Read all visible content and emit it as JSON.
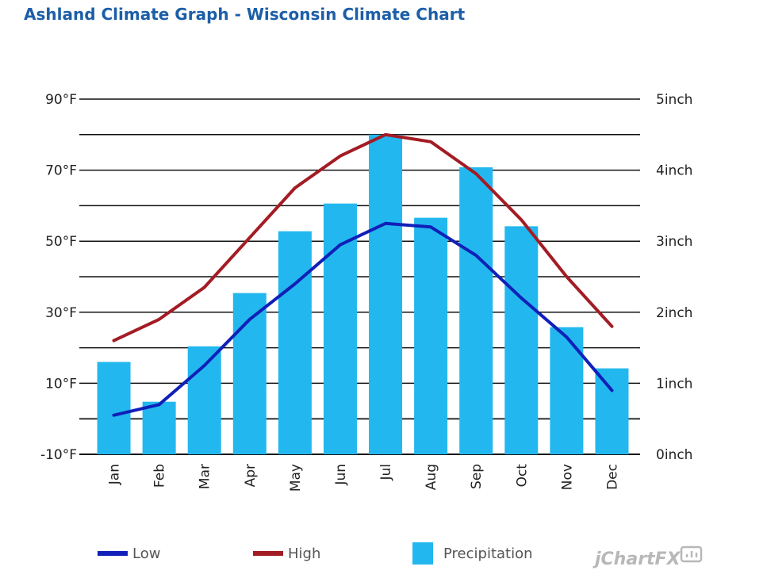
{
  "title": "Ashland Climate Graph - Wisconsin Climate Chart",
  "brand": "jChartFX",
  "chart_data": {
    "type": "bar",
    "title": "Ashland Climate Graph - Wisconsin Climate Chart",
    "categories": [
      "Jan",
      "Feb",
      "Mar",
      "Apr",
      "May",
      "Jun",
      "Jul",
      "Aug",
      "Sep",
      "Oct",
      "Nov",
      "Dec"
    ],
    "y_left": {
      "ticks": [
        "90°F",
        "70°F",
        "50°F",
        "30°F",
        "10°F",
        "-10°F"
      ],
      "ylim": [
        -10,
        90
      ],
      "unit": "°F"
    },
    "y_right": {
      "ticks": [
        "5inch",
        "4inch",
        "3inch",
        "2inch",
        "1inch",
        "0inch"
      ],
      "ylim": [
        0,
        5
      ],
      "unit": "inch"
    },
    "series": [
      {
        "name": "Low",
        "type": "line",
        "axis": "left",
        "color": "#1020b8",
        "values": [
          1,
          4,
          15,
          28,
          38,
          49,
          55,
          54,
          46,
          34,
          23,
          8
        ]
      },
      {
        "name": "High",
        "type": "line",
        "axis": "left",
        "color": "#a31c24",
        "values": [
          22,
          28,
          37,
          51,
          65,
          74,
          80,
          78,
          69,
          56,
          40,
          26
        ]
      },
      {
        "name": "Precipitation",
        "type": "bar",
        "axis": "right",
        "color": "#22b8ef",
        "values": [
          1.3,
          0.74,
          1.52,
          2.27,
          3.14,
          3.53,
          4.5,
          3.33,
          4.04,
          3.21,
          1.79,
          1.21
        ]
      }
    ],
    "grid": true,
    "legend": "bottom"
  }
}
